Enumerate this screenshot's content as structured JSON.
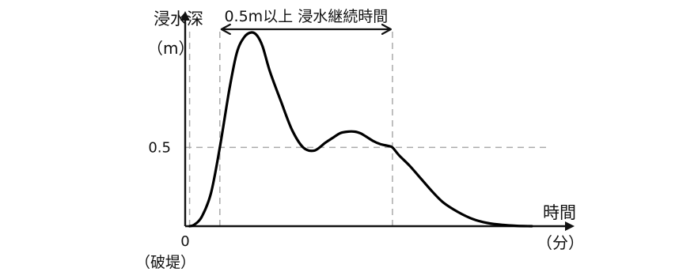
{
  "chart_data": {
    "type": "line",
    "ylabel_line1": "浸水深",
    "ylabel_line2": "（m）",
    "xlabel_line1": "時間",
    "xlabel_line2": "（分）",
    "origin_label": "0",
    "origin_sublabel": "（破堤）",
    "y_tick_label": "0.5",
    "threshold": 0.5,
    "xlim": [
      0,
      100
    ],
    "ylim": [
      0,
      1.25
    ],
    "marker_x": 1.2,
    "span": {
      "start": 9.4,
      "end": 56.2,
      "label": "0.5m以上 浸水継続時間"
    },
    "series": [
      {
        "x": [
          1.2,
          2.5,
          4.5,
          7,
          9.4,
          12,
          14,
          16,
          18,
          19.5,
          21,
          23,
          26,
          29,
          32,
          35,
          38,
          40,
          42,
          44,
          46,
          47.5,
          49,
          51,
          53,
          55,
          56.2,
          58,
          61,
          64,
          67,
          70,
          74,
          78,
          82,
          86,
          90,
          94
        ],
        "y": [
          0,
          0.01,
          0.06,
          0.21,
          0.5,
          0.87,
          1.1,
          1.2,
          1.23,
          1.21,
          1.14,
          0.98,
          0.79,
          0.61,
          0.5,
          0.48,
          0.53,
          0.56,
          0.59,
          0.6,
          0.6,
          0.59,
          0.57,
          0.54,
          0.52,
          0.51,
          0.5,
          0.45,
          0.38,
          0.3,
          0.22,
          0.15,
          0.09,
          0.045,
          0.02,
          0.008,
          0.002,
          0
        ]
      }
    ]
  }
}
